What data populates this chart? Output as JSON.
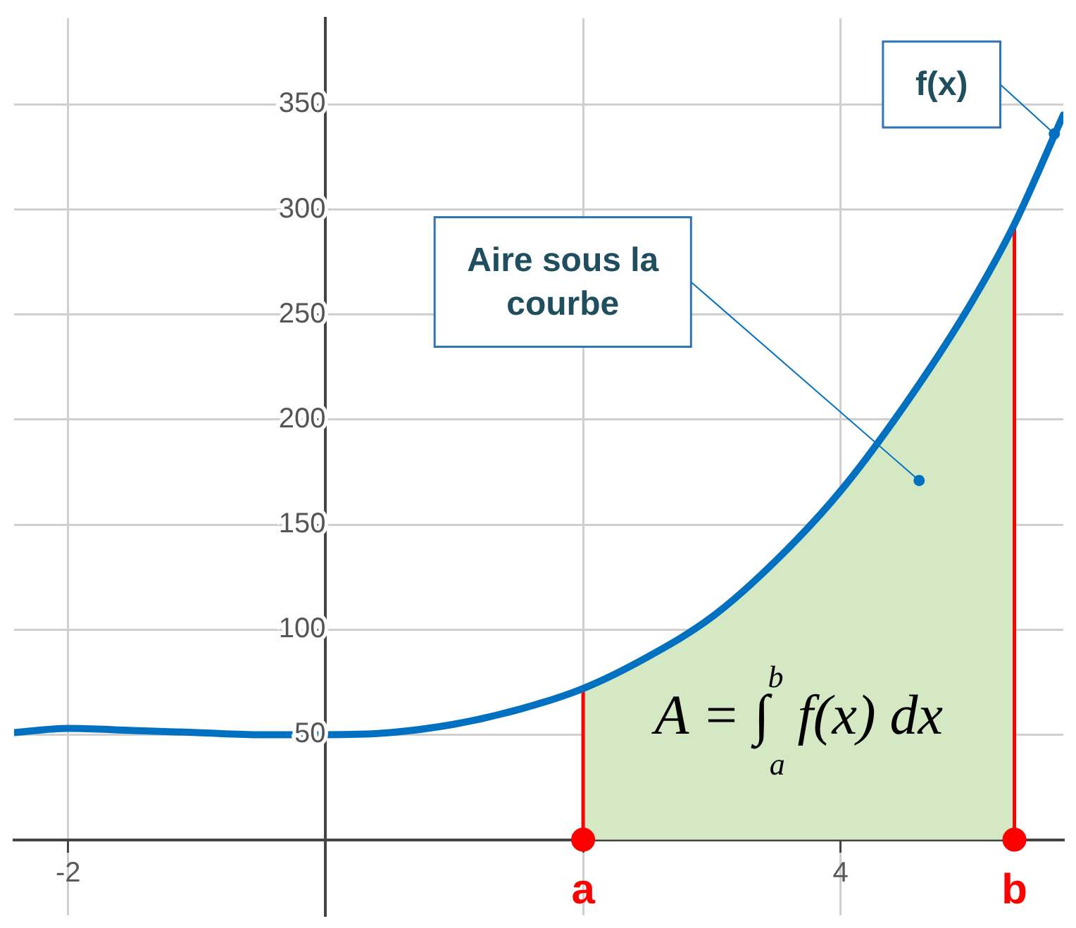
{
  "chart_data": {
    "type": "line",
    "series": [
      {
        "type": "line",
        "color": "#0070c0",
        "x": [
          -2.42,
          -2,
          -1.5,
          -1,
          -0.5,
          0,
          0.5,
          1,
          1.5,
          2,
          2.5,
          3,
          3.5,
          4,
          4.5,
          5,
          5.35,
          5.73
        ],
        "values": [
          51,
          53,
          52,
          51,
          50,
          50,
          51,
          55,
          62,
          72,
          87,
          106,
          133,
          166,
          207,
          254,
          293,
          345
        ]
      },
      {
        "type": "area",
        "color": "#d5e8c4",
        "x": [
          2,
          2.5,
          3,
          3.5,
          4,
          4.5,
          5,
          5.35
        ],
        "values": [
          72,
          87,
          106,
          133,
          166,
          207,
          254,
          293
        ]
      },
      {
        "type": "line",
        "color": "#ff0000",
        "x": [
          2,
          2
        ],
        "values": [
          0,
          72
        ]
      },
      {
        "type": "line",
        "color": "#ff0000",
        "x": [
          5.35,
          5.35
        ],
        "values": [
          0,
          293
        ]
      },
      {
        "type": "scatter",
        "color": "#ff0000",
        "marker": "circle",
        "x": [
          2,
          5.35
        ],
        "values": [
          0,
          0
        ]
      }
    ],
    "xlim": [
      -2.42,
      5.73
    ],
    "ylim": [
      -36,
      391
    ],
    "xticks": [
      -2,
      {
        "value": 0,
        "label": null
      },
      {
        "value": 2,
        "label": null
      },
      4
    ],
    "yticks": [
      {
        "value": 0,
        "label": null
      },
      50,
      100,
      150,
      200,
      250,
      300,
      350
    ],
    "grid": true,
    "annotations": [
      "A = ∫$_{a}$$^{b}$ f(x) dx",
      {
        "text": "Aire sous la courbe",
        "x": 4.61,
        "y": 171
      },
      {
        "text": "f(x)",
        "x": 5.66,
        "y": 336
      },
      {
        "text": "a",
        "x": 2,
        "y": 0
      },
      {
        "text": "b",
        "x": 5.35,
        "y": 0
      }
    ]
  }
}
